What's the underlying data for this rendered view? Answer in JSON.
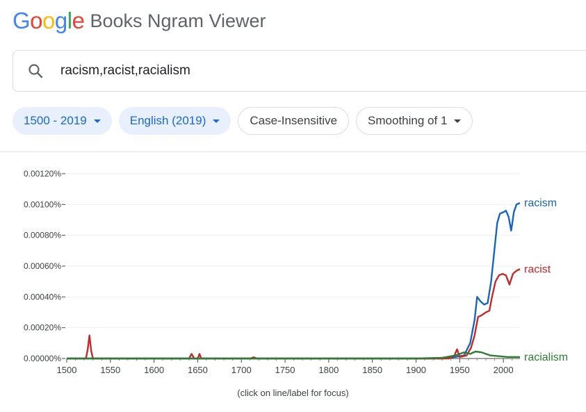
{
  "header": {
    "logo_letters": [
      {
        "ch": "G",
        "color": "#4285f4"
      },
      {
        "ch": "o",
        "color": "#ea4335"
      },
      {
        "ch": "o",
        "color": "#fbbc05"
      },
      {
        "ch": "g",
        "color": "#4285f4"
      },
      {
        "ch": "l",
        "color": "#34a853"
      },
      {
        "ch": "e",
        "color": "#ea4335"
      }
    ],
    "product_name": "Books Ngram Viewer"
  },
  "search": {
    "icon": "search-icon",
    "value": "racism,racist,racialism"
  },
  "chips": [
    {
      "label": "1500 - 2019",
      "dropdown": true,
      "active": true
    },
    {
      "label": "English (2019)",
      "dropdown": true,
      "active": true
    },
    {
      "label": "Case-Insensitive",
      "dropdown": false,
      "active": false
    },
    {
      "label": "Smoothing of 1",
      "dropdown": true,
      "active": false
    }
  ],
  "chart_data": {
    "type": "line",
    "title": "",
    "xlabel": "",
    "ylabel": "",
    "xlim": [
      1500,
      2019
    ],
    "ylim": [
      0,
      0.0012
    ],
    "grid": true,
    "legend": "inline-right",
    "x_ticks": [
      "1500",
      "1550",
      "1600",
      "1650",
      "1700",
      "1750",
      "1800",
      "1850",
      "1900",
      "1950",
      "2000"
    ],
    "y_ticks": [
      "0.00000%",
      "0.00020%",
      "0.00040%",
      "0.00060%",
      "0.00080%",
      "0.00100%",
      "0.00120%"
    ],
    "series": [
      {
        "name": "racism",
        "color": "#1565c0",
        "points": [
          [
            1500,
            0
          ],
          [
            1930,
            0
          ],
          [
            1945,
            1e-05
          ],
          [
            1955,
            2e-05
          ],
          [
            1962,
            0.0001
          ],
          [
            1967,
            0.00025
          ],
          [
            1970,
            0.0004
          ],
          [
            1974,
            0.00037
          ],
          [
            1978,
            0.00035
          ],
          [
            1982,
            0.00036
          ],
          [
            1986,
            0.0005
          ],
          [
            1990,
            0.00072
          ],
          [
            1993,
            0.00088
          ],
          [
            1996,
            0.00094
          ],
          [
            2000,
            0.00095
          ],
          [
            2003,
            0.00096
          ],
          [
            2006,
            0.00092
          ],
          [
            2009,
            0.00083
          ],
          [
            2012,
            0.00095
          ],
          [
            2015,
            0.001
          ],
          [
            2019,
            0.00101
          ]
        ]
      },
      {
        "name": "racist",
        "color": "#c62828",
        "points": [
          [
            1500,
            0
          ],
          [
            1522,
            0
          ],
          [
            1524,
            6e-05
          ],
          [
            1526,
            0.00015
          ],
          [
            1528,
            5e-05
          ],
          [
            1530,
            0
          ],
          [
            1640,
            0
          ],
          [
            1643,
            3e-05
          ],
          [
            1646,
            0
          ],
          [
            1650,
            0
          ],
          [
            1652,
            3e-05
          ],
          [
            1654,
            0
          ],
          [
            1710,
            0
          ],
          [
            1714,
            8e-06
          ],
          [
            1718,
            0
          ],
          [
            1938,
            0
          ],
          [
            1944,
            2e-05
          ],
          [
            1947,
            6e-05
          ],
          [
            1950,
            1e-05
          ],
          [
            1958,
            2e-05
          ],
          [
            1963,
            7e-05
          ],
          [
            1967,
            0.00015
          ],
          [
            1971,
            0.00027
          ],
          [
            1975,
            0.00028
          ],
          [
            1980,
            0.0003
          ],
          [
            1984,
            0.00031
          ],
          [
            1987,
            0.0004
          ],
          [
            1991,
            0.0005
          ],
          [
            1995,
            0.00054
          ],
          [
            1999,
            0.00055
          ],
          [
            2003,
            0.00054
          ],
          [
            2007,
            0.00048
          ],
          [
            2011,
            0.00055
          ],
          [
            2015,
            0.00057
          ],
          [
            2019,
            0.00058
          ]
        ]
      },
      {
        "name": "racialism",
        "color": "#2e7d32",
        "points": [
          [
            1500,
            0
          ],
          [
            1900,
            0
          ],
          [
            1930,
            5e-06
          ],
          [
            1945,
            2e-05
          ],
          [
            1955,
            4e-05
          ],
          [
            1962,
            3e-05
          ],
          [
            1968,
            4.5e-05
          ],
          [
            1975,
            4e-05
          ],
          [
            1985,
            2e-05
          ],
          [
            1995,
            1.5e-05
          ],
          [
            2005,
            1e-05
          ],
          [
            2019,
            1e-05
          ]
        ]
      }
    ]
  },
  "footer": {
    "focus_hint": "(click on line/label for focus)"
  }
}
